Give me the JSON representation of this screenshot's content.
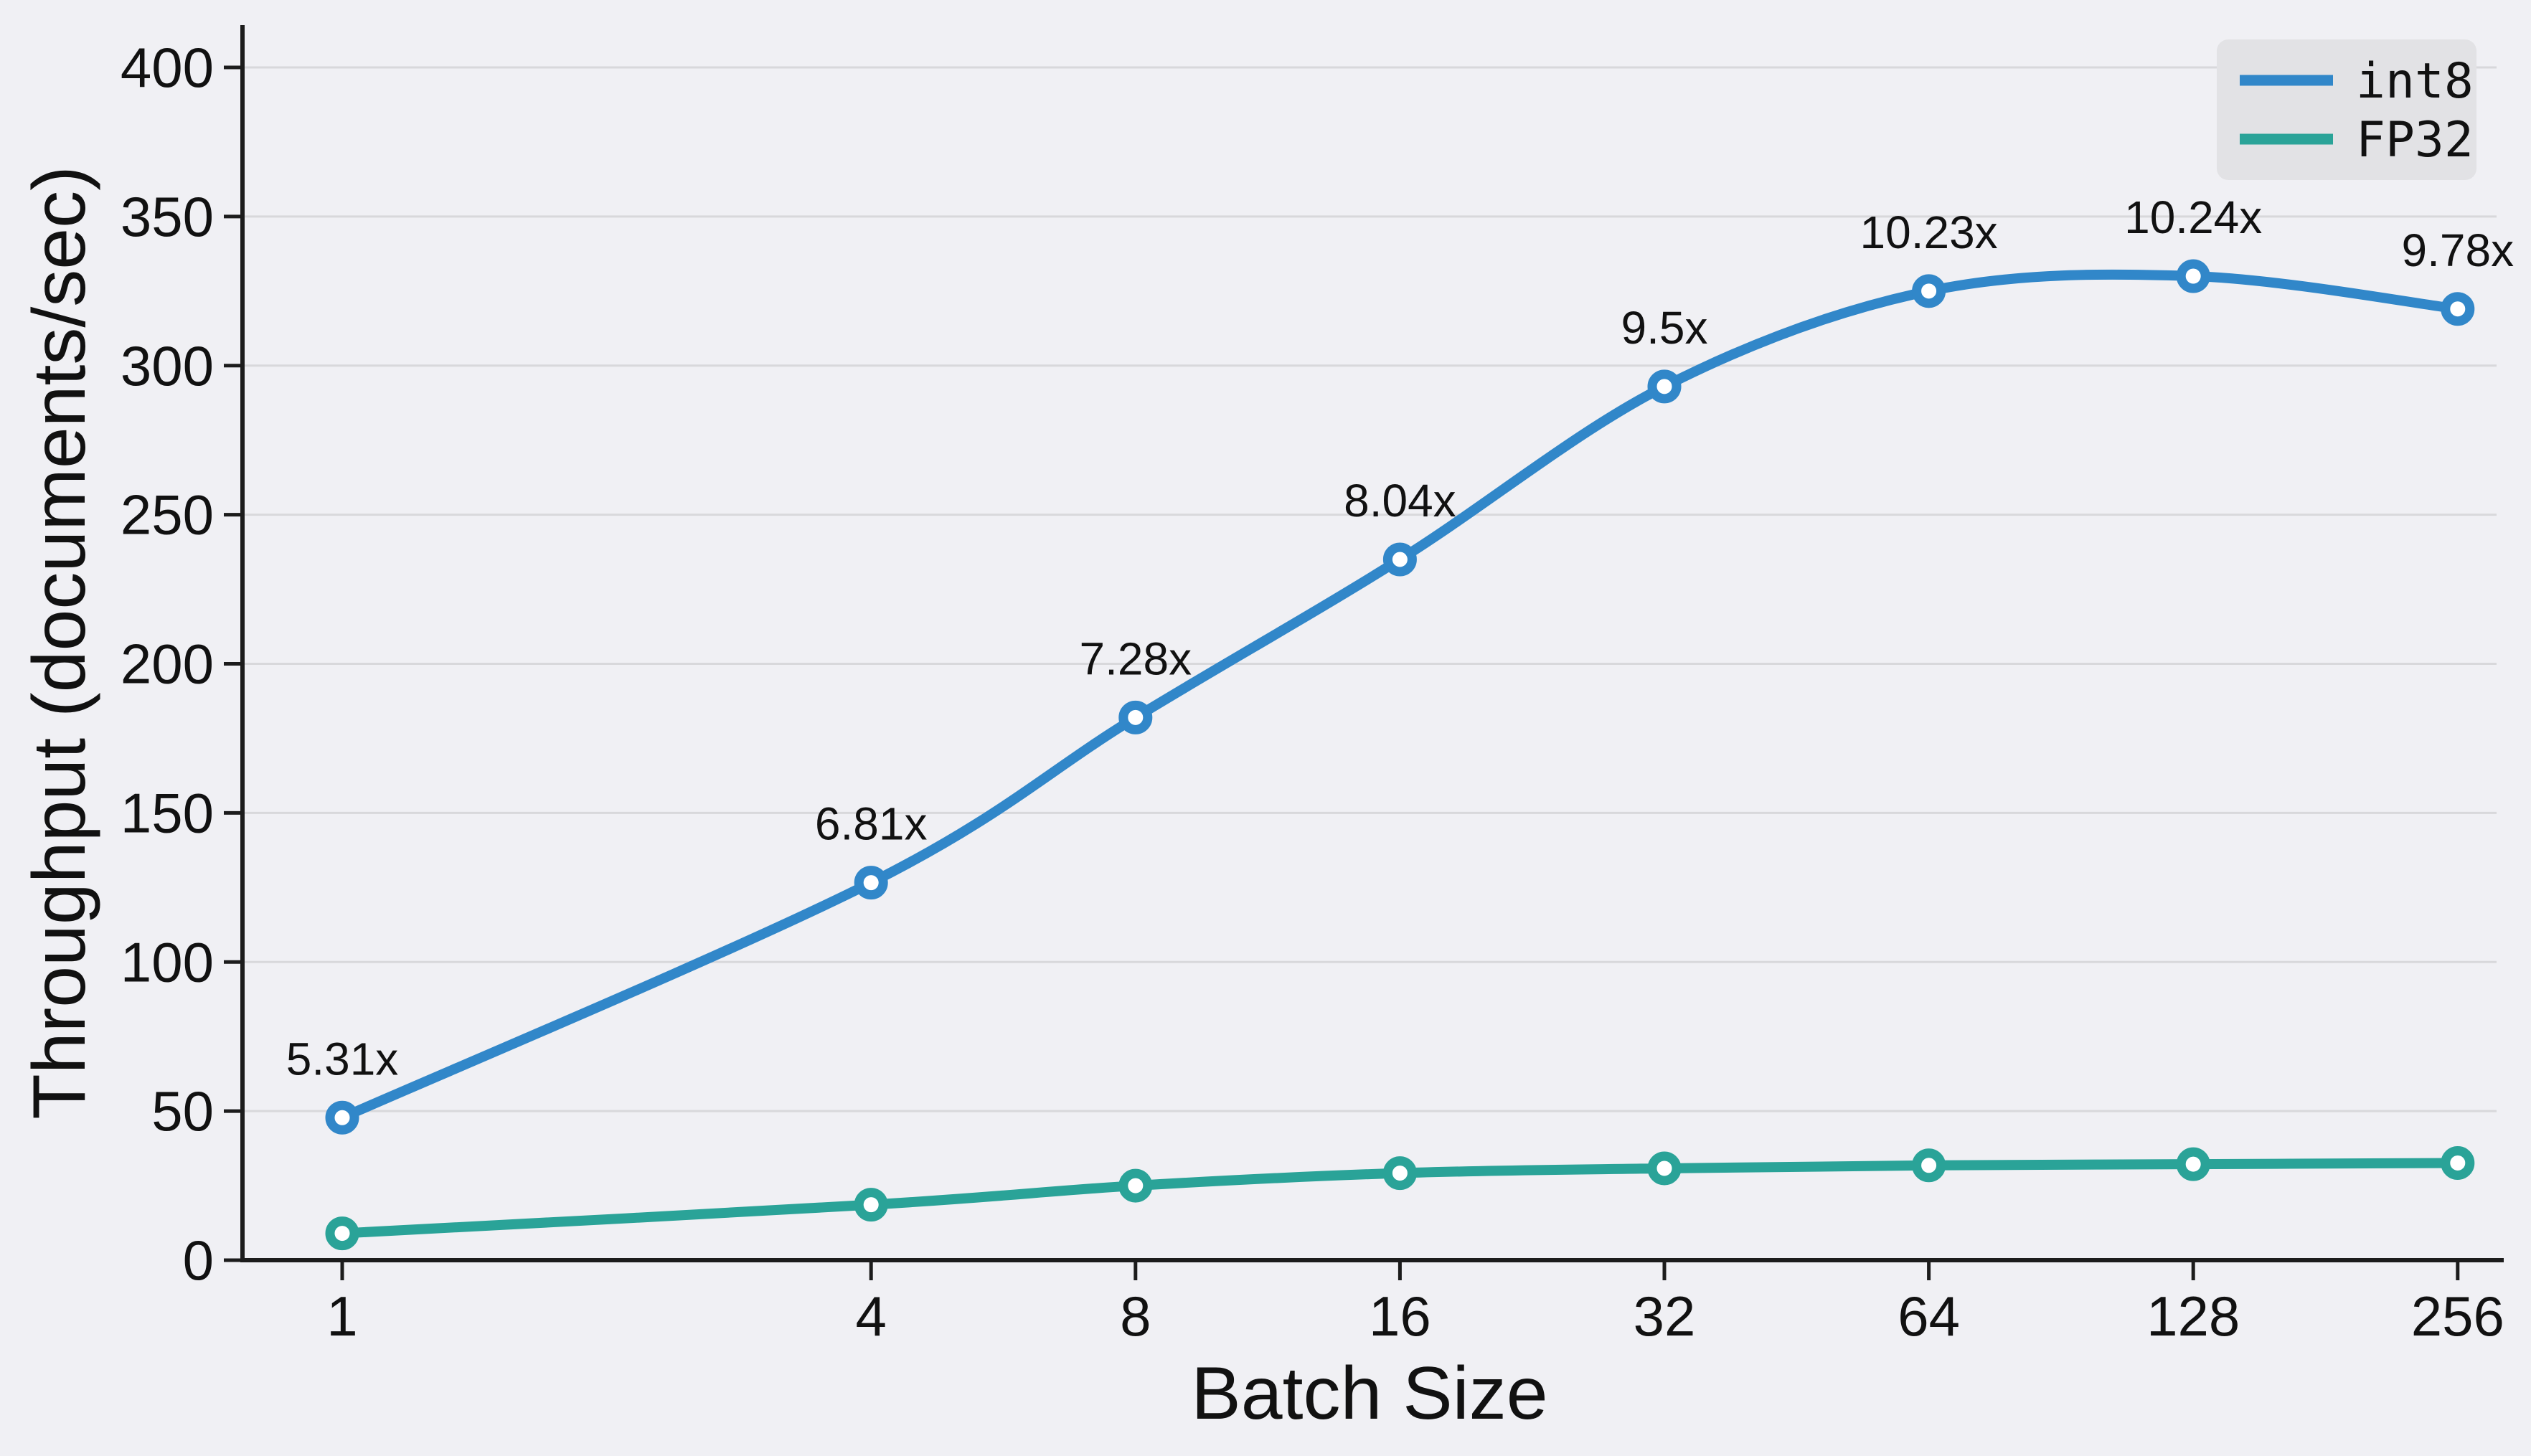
{
  "chart_data": {
    "type": "line",
    "title": "",
    "xlabel": "Batch Size",
    "ylabel": "Throughput (documents/sec)",
    "x_scale": "log2",
    "x": [
      1,
      4,
      8,
      16,
      32,
      64,
      128,
      256
    ],
    "xtick_labels": [
      "1",
      "4",
      "8",
      "16",
      "32",
      "64",
      "128",
      "256"
    ],
    "yticks": [
      0,
      50,
      100,
      150,
      200,
      250,
      300,
      350,
      400
    ],
    "ylim": [
      0,
      410
    ],
    "grid": true,
    "legend_position": "top-right",
    "series": [
      {
        "name": "int8",
        "color": "#3187c9",
        "values": [
          47.8,
          126.6,
          182,
          235,
          293,
          325,
          330,
          319
        ],
        "point_labels": [
          "5.31x",
          "6.81x",
          "7.28x",
          "8.04x",
          "9.5x",
          "10.23x",
          "10.24x",
          "9.78x"
        ]
      },
      {
        "name": "FP32",
        "color": "#2aa398",
        "values": [
          9,
          18.6,
          25,
          29.2,
          30.8,
          31.8,
          32.2,
          32.6
        ],
        "point_labels": []
      }
    ]
  },
  "colors": {
    "background": "#f0f0f4",
    "grid": "#d8d8db",
    "axis": "#1c1c1c",
    "text": "#111111",
    "legend_bg": "#e2e2e5",
    "marker_fill": "#ffffff"
  }
}
